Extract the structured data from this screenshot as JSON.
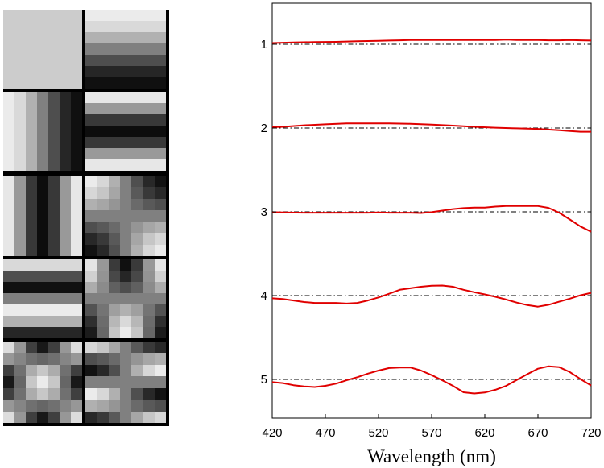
{
  "chart_data": {
    "type": "line",
    "title": "",
    "xlabel": "Wavelength (nm)",
    "ylabel": "",
    "xlim": [
      420,
      720
    ],
    "xticks": [
      420,
      470,
      520,
      570,
      620,
      670,
      720
    ],
    "grid": false,
    "line_color": "#e00000",
    "baseline_style": "dash-dot",
    "series": [
      {
        "name": "1",
        "x": [
          420,
          430,
          440,
          460,
          480,
          490,
          500,
          520,
          530,
          540,
          550,
          560,
          580,
          600,
          610,
          620,
          630,
          640,
          650,
          660,
          670,
          680,
          690,
          700,
          710,
          720
        ],
        "offset": [
          0.4,
          0.5,
          0.6,
          0.7,
          0.8,
          0.9,
          1.0,
          1.1,
          1.2,
          1.3,
          1.4,
          1.4,
          1.4,
          1.4,
          1.4,
          1.4,
          1.4,
          1.5,
          1.4,
          1.4,
          1.4,
          1.3,
          1.3,
          1.4,
          1.3,
          1.2
        ]
      },
      {
        "name": "2",
        "x": [
          420,
          430,
          450,
          470,
          490,
          510,
          520,
          530,
          550,
          570,
          590,
          610,
          630,
          650,
          670,
          690,
          700,
          710,
          720
        ],
        "offset": [
          0.3,
          0.4,
          0.9,
          1.2,
          1.5,
          1.5,
          1.5,
          1.5,
          1.4,
          1.1,
          0.8,
          0.4,
          0.1,
          -0.1,
          -0.3,
          -0.7,
          -1.0,
          -1.2,
          -1.2
        ]
      },
      {
        "name": "3",
        "x": [
          420,
          430,
          450,
          470,
          490,
          510,
          520,
          530,
          550,
          560,
          570,
          580,
          590,
          600,
          610,
          620,
          630,
          640,
          650,
          660,
          670,
          680,
          690,
          700,
          710,
          720
        ],
        "offset": [
          -0.1,
          -0.2,
          -0.3,
          -0.3,
          -0.3,
          -0.3,
          -0.2,
          -0.3,
          -0.3,
          -0.4,
          -0.1,
          0.4,
          0.9,
          1.2,
          1.4,
          1.4,
          1.7,
          1.9,
          1.9,
          1.9,
          1.9,
          1.3,
          -0.3,
          -2.5,
          -4.8,
          -6.5
        ]
      },
      {
        "name": "4",
        "x": [
          420,
          430,
          440,
          450,
          460,
          470,
          480,
          490,
          500,
          510,
          520,
          530,
          540,
          550,
          560,
          570,
          580,
          590,
          600,
          610,
          620,
          630,
          640,
          650,
          660,
          670,
          680,
          690,
          700,
          710,
          720
        ],
        "offset": [
          -0.9,
          -1.1,
          -1.6,
          -2.1,
          -2.4,
          -2.4,
          -2.4,
          -2.6,
          -2.4,
          -1.6,
          -0.6,
          0.6,
          1.9,
          2.4,
          2.9,
          3.2,
          3.3,
          2.9,
          1.9,
          1.1,
          0.4,
          -0.4,
          -1.3,
          -2.3,
          -3.1,
          -3.6,
          -3.0,
          -2.0,
          -1.0,
          0.1,
          0.9
        ]
      },
      {
        "name": "5",
        "x": [
          420,
          430,
          440,
          450,
          460,
          470,
          480,
          490,
          500,
          510,
          520,
          530,
          540,
          550,
          560,
          570,
          580,
          590,
          600,
          610,
          620,
          630,
          640,
          650,
          660,
          670,
          680,
          690,
          700,
          710,
          720
        ],
        "offset": [
          -0.9,
          -1.2,
          -1.9,
          -2.3,
          -2.5,
          -2.1,
          -1.4,
          -0.3,
          0.7,
          1.9,
          2.9,
          3.7,
          3.9,
          3.9,
          2.9,
          1.4,
          -0.3,
          -2.1,
          -4.2,
          -4.6,
          -4.3,
          -3.4,
          -2.1,
          -0.2,
          1.7,
          3.5,
          4.3,
          4.0,
          2.4,
          0.1,
          -2.0
        ]
      }
    ]
  }
}
